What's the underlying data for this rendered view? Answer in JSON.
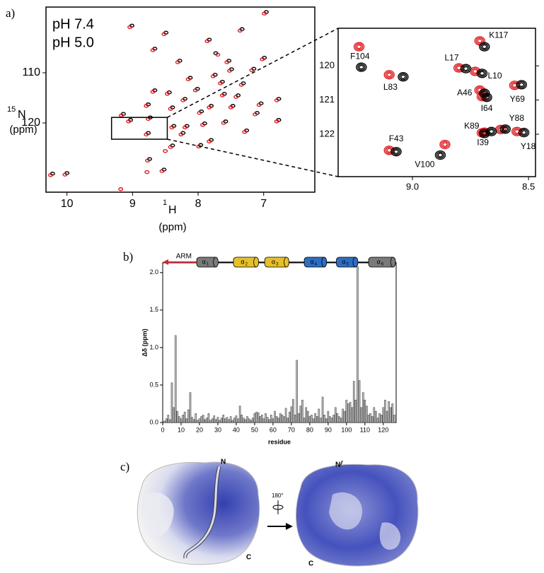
{
  "figure": {
    "panel_labels": [
      "a)",
      "b)",
      "c)"
    ],
    "structure": {
      "views": [
        {
          "n": "N",
          "c": "C"
        },
        {
          "n": "N",
          "c": "C"
        }
      ],
      "rotation": "180°"
    }
  },
  "chart_data": [
    {
      "type": "spectrum",
      "x_label": {
        "isotope": "1",
        "nucleus": "H",
        "unit": "(ppm)"
      },
      "y_label": {
        "isotope": "15",
        "nucleus": "N",
        "unit": "(ppm)"
      },
      "xlim": [
        10.32,
        6.22
      ],
      "ylim": [
        96.9,
        133.8
      ],
      "xticks": [
        10,
        9,
        8,
        7
      ],
      "yticks": [
        110,
        120
      ],
      "series": [
        {
          "name": "pH 7.4",
          "color": "#000000",
          "x": [
            6.96,
            9.01,
            8.49,
            7.33,
            7.83,
            7.73,
            8.66,
            8.28,
            7.53,
            6.99,
            7.49,
            7.15,
            8.12,
            7.74,
            7.63,
            7.31,
            8.66,
            8.44,
            8.01,
            7.6,
            7.39,
            8.2,
            7.8,
            7.47,
            7.04,
            8.76,
            8.39,
            9.14,
            7.95,
            8.73,
            9.03,
            8.37,
            8.17,
            7.58,
            7.9,
            7.26,
            8.76,
            7.8,
            8.39,
            7.96,
            7.1,
            6.77,
            8.74,
            8.52,
            10.0,
            10.22,
            6.77,
            8.23
          ],
          "y": [
            97.9,
            100.6,
            102.0,
            101.3,
            103.4,
            106.1,
            105.2,
            107.6,
            107.6,
            107.0,
            109.3,
            109.2,
            111.0,
            110.4,
            111.8,
            112.1,
            113.5,
            113.9,
            113.2,
            114.2,
            114.5,
            115.2,
            116.6,
            116.6,
            116.1,
            116.3,
            116.9,
            118.2,
            117.7,
            118.9,
            119.4,
            120.6,
            120.6,
            119.7,
            120.1,
            121.5,
            122.0,
            123.4,
            124.5,
            124.4,
            118.0,
            115.2,
            127.2,
            129.3,
            130.0,
            130.1,
            119.4,
            122.0
          ]
        },
        {
          "name": "pH 5.0",
          "color": "#e0191f",
          "x": [
            6.99,
            9.04,
            8.52,
            7.36,
            7.86,
            7.7,
            8.69,
            8.31,
            7.56,
            7.02,
            7.52,
            7.18,
            8.15,
            7.77,
            7.66,
            7.34,
            8.69,
            8.47,
            8.04,
            7.63,
            7.42,
            8.23,
            7.83,
            7.5,
            7.07,
            8.79,
            8.42,
            9.17,
            7.98,
            8.76,
            9.06,
            8.4,
            8.2,
            7.61,
            7.93,
            7.29,
            8.79,
            7.83,
            8.42,
            7.99,
            7.13,
            6.8,
            8.77,
            8.55,
            10.03,
            10.25,
            6.8,
            8.26,
            9.18,
            8.78,
            8.5
          ],
          "y": [
            98.2,
            100.9,
            102.3,
            101.6,
            103.7,
            106.4,
            105.5,
            107.9,
            107.9,
            107.3,
            109.6,
            109.5,
            111.3,
            110.7,
            112.1,
            112.4,
            113.8,
            114.2,
            113.5,
            114.5,
            114.8,
            115.5,
            116.9,
            116.9,
            116.4,
            116.6,
            117.2,
            118.5,
            118.0,
            119.2,
            119.7,
            120.9,
            120.9,
            120.0,
            120.4,
            121.8,
            122.3,
            123.7,
            124.8,
            124.7,
            118.3,
            115.5,
            127.5,
            129.6,
            130.3,
            130.4,
            119.7,
            122.3,
            133.2,
            129.8,
            125.6
          ]
        }
      ]
    },
    {
      "type": "spectrum-inset",
      "xlim": [
        9.32,
        8.47
      ],
      "ylim": [
        118.9,
        123.24
      ],
      "xticks": [
        {
          "value": 9,
          "label": "9.0"
        },
        8.5
      ],
      "yticks": [
        120,
        121,
        122
      ],
      "point_labels": [
        "F104",
        "L83",
        "L17",
        "K117",
        "L10",
        "A46",
        "I64",
        "Y69",
        "F43",
        "V100",
        "K89",
        "Y88",
        "I39",
        "Y18"
      ],
      "series": [
        {
          "color": "#000000",
          "x": [
            9.22,
            9.04,
            8.77,
            8.69,
            8.7,
            8.69,
            8.68,
            8.53,
            9.07,
            8.88,
            8.69,
            8.6,
            8.66,
            8.52
          ],
          "y": [
            120.04,
            120.32,
            120.08,
            119.44,
            120.22,
            120.8,
            120.92,
            120.55,
            122.51,
            122.61,
            121.98,
            121.85,
            121.92,
            121.95
          ]
        },
        {
          "color": "#e0191f",
          "x": [
            9.23,
            9.1,
            8.8,
            8.71,
            8.73,
            8.71,
            8.7,
            8.56,
            9.1,
            8.86,
            8.7,
            8.62,
            8.69,
            8.55
          ],
          "y": [
            119.44,
            120.26,
            120.06,
            119.27,
            120.16,
            120.71,
            120.9,
            120.57,
            122.47,
            122.3,
            121.96,
            121.86,
            121.94,
            121.92
          ]
        }
      ]
    },
    {
      "type": "bar",
      "x_label": "residue",
      "y_label": "Δδ (ppm)",
      "xlim": [
        0,
        127
      ],
      "ylim": [
        0,
        2.13
      ],
      "xticks": [
        0,
        10,
        20,
        30,
        40,
        50,
        60,
        70,
        80,
        90,
        100,
        110,
        120
      ],
      "yticks": [
        {
          "value": 0,
          "label": "0.0"
        },
        {
          "value": 0.5,
          "label": "0.5"
        },
        {
          "value": 1,
          "label": "1.0"
        },
        {
          "value": 1.5,
          "label": "1.5"
        },
        {
          "value": 2,
          "label": "2.0"
        }
      ],
      "color": "#bdbdbd",
      "x": [
        1,
        2,
        3,
        4,
        5,
        6,
        7,
        8,
        9,
        10,
        11,
        12,
        13,
        14,
        15,
        16,
        17,
        18,
        19,
        20,
        21,
        22,
        23,
        24,
        25,
        26,
        27,
        28,
        29,
        30,
        31,
        32,
        33,
        34,
        35,
        36,
        37,
        38,
        39,
        40,
        41,
        42,
        43,
        44,
        45,
        46,
        47,
        48,
        49,
        50,
        51,
        52,
        53,
        54,
        55,
        56,
        57,
        58,
        59,
        60,
        61,
        62,
        63,
        64,
        65,
        66,
        67,
        68,
        69,
        70,
        71,
        72,
        73,
        74,
        75,
        76,
        77,
        78,
        79,
        80,
        81,
        82,
        83,
        84,
        85,
        86,
        87,
        88,
        89,
        90,
        91,
        92,
        93,
        94,
        95,
        96,
        97,
        98,
        99,
        100,
        101,
        102,
        103,
        104,
        105,
        106,
        107,
        108,
        109,
        110,
        111,
        112,
        113,
        114,
        115,
        116,
        117,
        118,
        119,
        120,
        121,
        122,
        123,
        124,
        125,
        126
      ],
      "values": [
        0.02,
        0.05,
        0.1,
        0.04,
        0.53,
        0.2,
        1.16,
        0.15,
        0.08,
        0.05,
        0.1,
        0.14,
        0.05,
        0.17,
        0.4,
        0.07,
        0.04,
        0.12,
        0.03,
        0.05,
        0.08,
        0.1,
        0.04,
        0.06,
        0.12,
        0.03,
        0.05,
        0.09,
        0.04,
        0.07,
        0.03,
        0.06,
        0.1,
        0.05,
        0.07,
        0.04,
        0.08,
        0.03,
        0.06,
        0.09,
        0.05,
        0.22,
        0.1,
        0.06,
        0.04,
        0.08,
        0.05,
        0.03,
        0.06,
        0.12,
        0.14,
        0.13,
        0.08,
        0.1,
        0.05,
        0.12,
        0.07,
        0.04,
        0.1,
        0.05,
        0.15,
        0.08,
        0.06,
        0.12,
        0.1,
        0.08,
        0.19,
        0.06,
        0.14,
        0.21,
        0.31,
        0.1,
        0.83,
        0.12,
        0.22,
        0.3,
        0.06,
        0.2,
        0.15,
        0.08,
        0.1,
        0.05,
        0.12,
        0.08,
        0.18,
        0.06,
        0.34,
        0.1,
        0.05,
        0.15,
        0.08,
        0.06,
        0.1,
        0.2,
        0.12,
        0.08,
        0.06,
        0.18,
        0.15,
        0.3,
        0.25,
        0.27,
        0.2,
        0.55,
        0.3,
        2.08,
        0.56,
        0.2,
        0.4,
        0.3,
        0.22,
        0.1,
        0.12,
        0.08,
        0.2,
        0.15,
        0.06,
        0.12,
        0.1,
        0.2,
        0.3,
        0.15,
        0.28,
        0.2,
        0.25,
        0.1
      ],
      "arm": {
        "label": "ARM",
        "start": 23,
        "end": 0,
        "color": "#c8283c"
      },
      "helices": [
        {
          "symbol": "α",
          "index": "1",
          "start": 18.5,
          "end": 30,
          "color": "#7a7a7a"
        },
        {
          "symbol": "α",
          "index": "2",
          "start": 38.5,
          "end": 52,
          "color": "#e5c02a"
        },
        {
          "symbol": "α",
          "index": "3",
          "start": 55.5,
          "end": 68.5,
          "color": "#e5c02a"
        },
        {
          "symbol": "α",
          "index": "4",
          "start": 77,
          "end": 89,
          "color": "#2e6ec2"
        },
        {
          "symbol": "α",
          "index": "5",
          "start": 94.5,
          "end": 106,
          "color": "#2e6ec2"
        },
        {
          "symbol": "α",
          "index": "6",
          "start": 112,
          "end": 126.5,
          "color": "#7a7a7a"
        }
      ]
    }
  ]
}
